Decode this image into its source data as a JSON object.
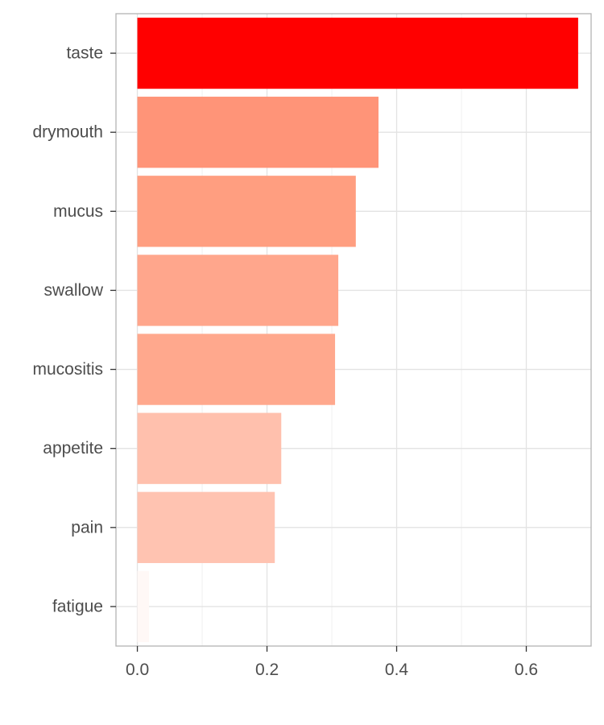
{
  "chart_data": {
    "type": "bar",
    "orientation": "horizontal",
    "title": "",
    "xlabel": "",
    "ylabel": "",
    "categories": [
      "taste",
      "drymouth",
      "mucus",
      "swallow",
      "mucositis",
      "appetite",
      "pain",
      "fatigue"
    ],
    "values": [
      0.68,
      0.372,
      0.337,
      0.31,
      0.305,
      0.222,
      0.212,
      0.018
    ],
    "colors": [
      "#ff0000",
      "#ff9478",
      "#ff9e80",
      "#ffa68c",
      "#ffa88d",
      "#ffc0ad",
      "#ffc3b1",
      "#fff8f6"
    ],
    "xlim": [
      -0.033,
      0.7
    ],
    "x_ticks": [
      0.0,
      0.2,
      0.4,
      0.6
    ],
    "x_tick_labels": [
      "0.0",
      "0.2",
      "0.4",
      "0.6"
    ],
    "grid": true,
    "legend": "none"
  }
}
